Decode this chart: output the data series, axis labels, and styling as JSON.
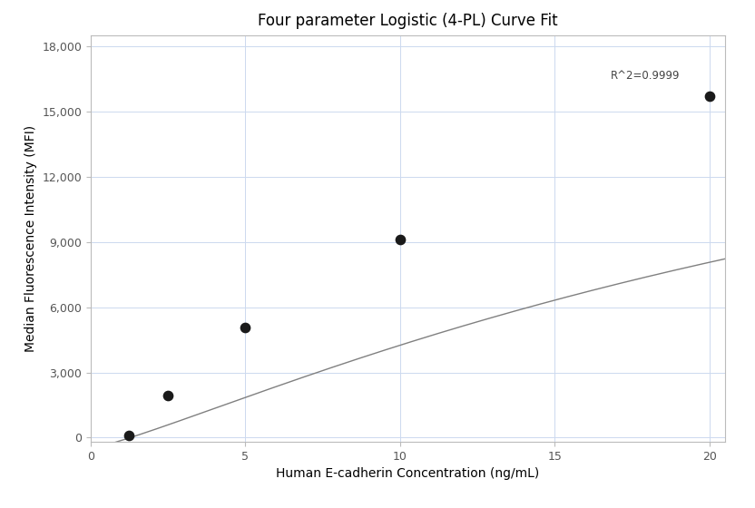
{
  "title": "Four parameter Logistic (4-PL) Curve Fit",
  "xlabel": "Human E-cadherin Concentration (ng/mL)",
  "ylabel": "Median Fluorescence Intensity (MFI)",
  "data_x": [
    1.25,
    2.5,
    5.0,
    10.0,
    20.0
  ],
  "data_y": [
    80,
    1950,
    5050,
    9100,
    15700
  ],
  "xlim": [
    0,
    20.5
  ],
  "ylim": [
    -200,
    18500
  ],
  "xticks": [
    0,
    5,
    10,
    15,
    20
  ],
  "yticks": [
    0,
    3000,
    6000,
    9000,
    12000,
    15000,
    18000
  ],
  "r2_text": "R^2=0.9999",
  "r2_x": 16.8,
  "r2_y": 16400,
  "point_color": "#1a1a1a",
  "point_size": 55,
  "line_color": "#808080",
  "grid_color": "#ccd9ef",
  "background_color": "#ffffff",
  "title_fontsize": 12,
  "label_fontsize": 10,
  "tick_fontsize": 9,
  "annotation_fontsize": 8.5,
  "spine_color": "#bbbbbb"
}
